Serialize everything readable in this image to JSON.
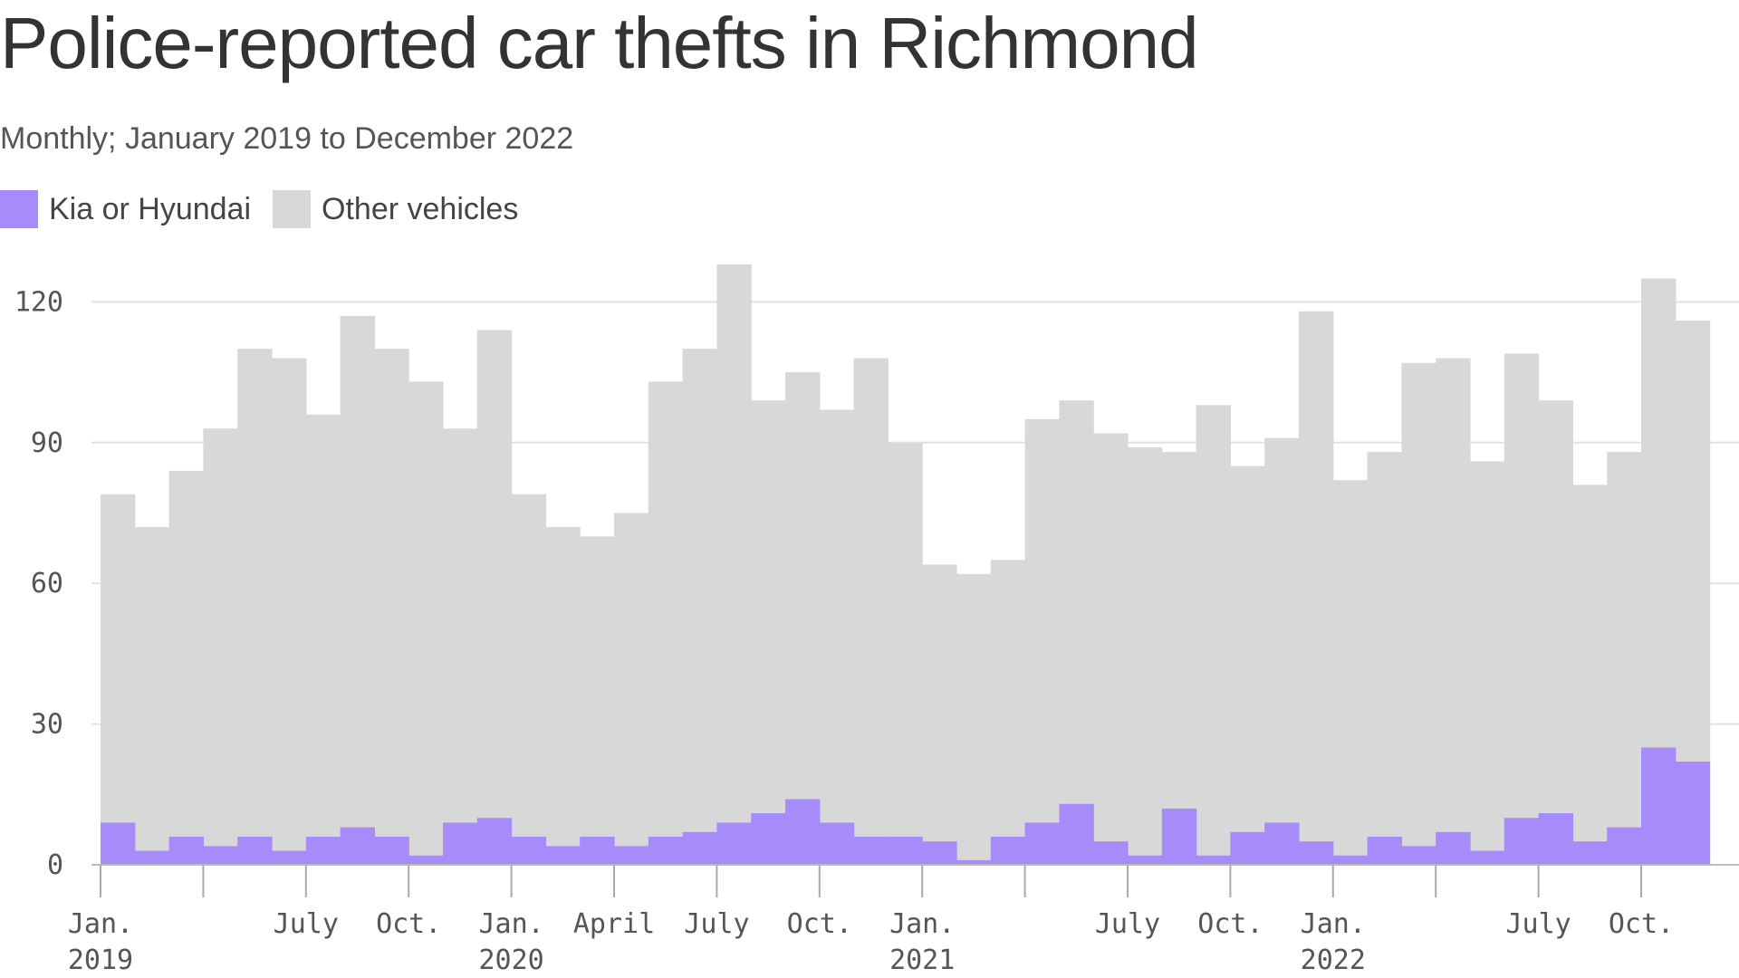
{
  "title": "Police-reported car thefts in Richmond",
  "subtitle": "Monthly; January 2019 to December 2022",
  "legend": [
    {
      "label": "Kia or Hyundai",
      "color": "#a78bfa"
    },
    {
      "label": "Other vehicles",
      "color": "#d8d8d8"
    }
  ],
  "chart_data": {
    "type": "bar",
    "stacked": true,
    "x_start": "2019-01",
    "x_end": "2022-12",
    "ylim": [
      0,
      130
    ],
    "y_ticks": [
      0,
      30,
      60,
      90,
      120
    ],
    "grid": true,
    "legend_position": "top-left",
    "x_tick_labels": [
      {
        "month_index": 0,
        "line1": "Jan.",
        "line2": "2019"
      },
      {
        "month_index": 6,
        "line1": "July",
        "line2": ""
      },
      {
        "month_index": 9,
        "line1": "Oct.",
        "line2": ""
      },
      {
        "month_index": 12,
        "line1": "Jan.",
        "line2": "2020"
      },
      {
        "month_index": 15,
        "line1": "April",
        "line2": ""
      },
      {
        "month_index": 18,
        "line1": "July",
        "line2": ""
      },
      {
        "month_index": 21,
        "line1": "Oct.",
        "line2": ""
      },
      {
        "month_index": 24,
        "line1": "Jan.",
        "line2": "2021"
      },
      {
        "month_index": 30,
        "line1": "July",
        "line2": ""
      },
      {
        "month_index": 33,
        "line1": "Oct.",
        "line2": ""
      },
      {
        "month_index": 36,
        "line1": "Jan.",
        "line2": "2022"
      },
      {
        "month_index": 42,
        "line1": "July",
        "line2": ""
      },
      {
        "month_index": 45,
        "line1": "Oct.",
        "line2": ""
      }
    ],
    "series": [
      {
        "name": "Kia or Hyundai",
        "color": "#a78bfa",
        "values": [
          9,
          3,
          6,
          4,
          6,
          3,
          6,
          8,
          6,
          2,
          9,
          10,
          6,
          4,
          6,
          4,
          6,
          7,
          9,
          11,
          14,
          9,
          6,
          6,
          5,
          1,
          6,
          9,
          13,
          5,
          2,
          12,
          2,
          7,
          9,
          5,
          2,
          6,
          4,
          7,
          3,
          10,
          11,
          5,
          8,
          25,
          22,
          0
        ]
      },
      {
        "name": "Other vehicles",
        "color": "#d8d8d8",
        "values": [
          70,
          69,
          78,
          89,
          104,
          105,
          90,
          109,
          104,
          101,
          84,
          104,
          73,
          68,
          64,
          71,
          97,
          103,
          119,
          88,
          91,
          88,
          102,
          84,
          59,
          61,
          59,
          86,
          86,
          87,
          87,
          76,
          96,
          78,
          82,
          113,
          80,
          82,
          103,
          101,
          83,
          99,
          88,
          76,
          80,
          100,
          94,
          0
        ]
      }
    ]
  }
}
